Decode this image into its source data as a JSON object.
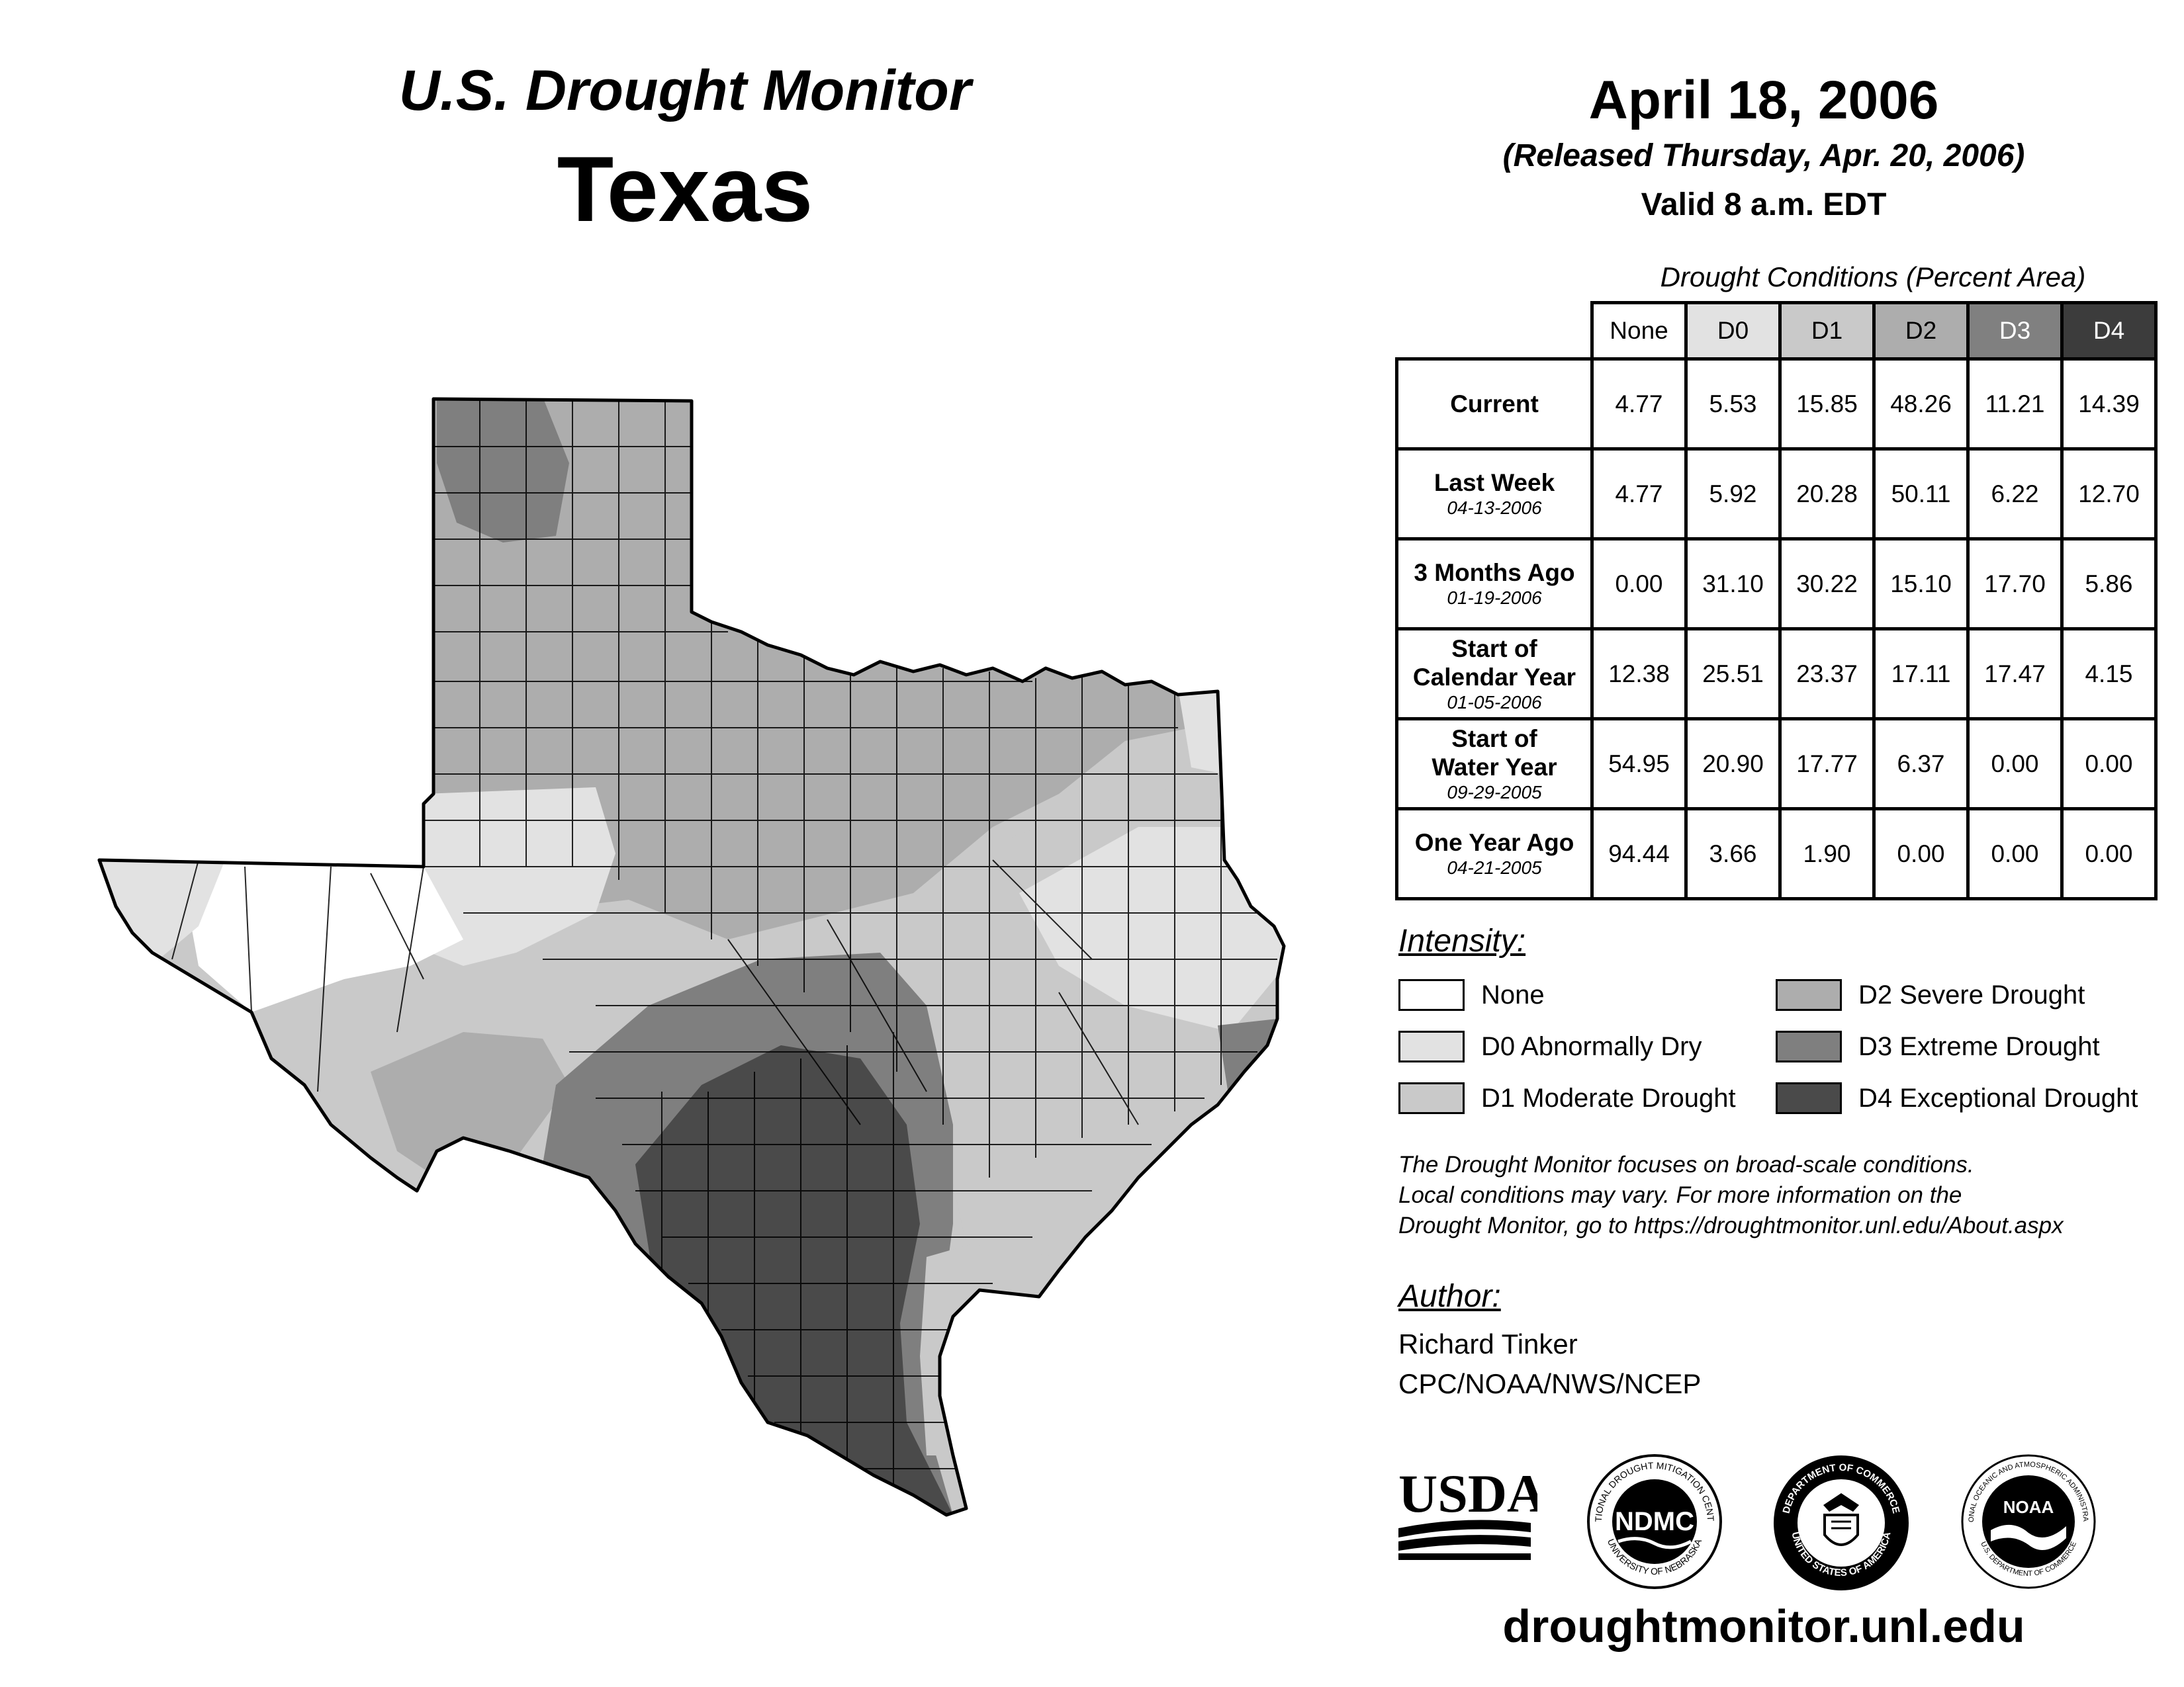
{
  "header": {
    "subtitle": "U.S. Drought Monitor",
    "state": "Texas",
    "date": "April 18, 2006",
    "released": "(Released Thursday, Apr. 20, 2006)",
    "valid": "Valid 8 a.m. EDT"
  },
  "table": {
    "caption": "Drought Conditions (Percent Area)",
    "columns": [
      "None",
      "D0",
      "D1",
      "D2",
      "D3",
      "D4"
    ],
    "rows": [
      {
        "label": "Current",
        "date": "",
        "values": [
          "4.77",
          "5.53",
          "15.85",
          "48.26",
          "11.21",
          "14.39"
        ]
      },
      {
        "label": "Last Week",
        "date": "04-13-2006",
        "values": [
          "4.77",
          "5.92",
          "20.28",
          "50.11",
          "6.22",
          "12.70"
        ]
      },
      {
        "label": "3 Months Ago",
        "date": "01-19-2006",
        "values": [
          "0.00",
          "31.10",
          "30.22",
          "15.10",
          "17.70",
          "5.86"
        ]
      },
      {
        "label_line1": "Start of",
        "label_line2": "Calendar Year",
        "date": "01-05-2006",
        "values": [
          "12.38",
          "25.51",
          "23.37",
          "17.11",
          "17.47",
          "4.15"
        ]
      },
      {
        "label_line1": "Start of",
        "label_line2": "Water Year",
        "date": "09-29-2005",
        "values": [
          "54.95",
          "20.90",
          "17.77",
          "6.37",
          "0.00",
          "0.00"
        ]
      },
      {
        "label": "One Year Ago",
        "date": "04-21-2005",
        "values": [
          "94.44",
          "3.66",
          "1.90",
          "0.00",
          "0.00",
          "0.00"
        ]
      }
    ]
  },
  "legend": {
    "title": "Intensity:",
    "items": [
      {
        "label": "None",
        "color": "#ffffff"
      },
      {
        "label": "D0 Abnormally Dry",
        "color": "#e2e2e2"
      },
      {
        "label": "D1 Moderate Drought",
        "color": "#c9c9c9"
      },
      {
        "label": "D2 Severe Drought",
        "color": "#adadad"
      },
      {
        "label": "D3 Extreme Drought",
        "color": "#7f7f7f"
      },
      {
        "label": "D4 Exceptional Drought",
        "color": "#4a4a4a"
      }
    ]
  },
  "note": {
    "line1": "The Drought Monitor focuses on broad-scale conditions.",
    "line2": "Local conditions may vary. For more information on the",
    "line3": "Drought Monitor, go to https://droughtmonitor.unl.edu/About.aspx"
  },
  "author": {
    "title": "Author:",
    "name": "Richard Tinker",
    "org": "CPC/NOAA/NWS/NCEP"
  },
  "logos": {
    "usda": "USDA",
    "ndmc": "NDMC",
    "ndmc_ring_top": "NATIONAL DROUGHT MITIGATION CENTER",
    "ndmc_ring_bottom": "UNIVERSITY OF NEBRASKA",
    "commerce_ring_top": "DEPARTMENT OF COMMERCE",
    "commerce_ring_bottom": "UNITED STATES OF AMERICA",
    "noaa": "NOAA",
    "noaa_ring_top": "NATIONAL OCEANIC AND ATMOSPHERIC ADMINISTRATION",
    "noaa_ring_bottom": "U.S. DEPARTMENT OF COMMERCE"
  },
  "website": "droughtmonitor.unl.edu",
  "colors": {
    "none": "#ffffff",
    "d0": "#e2e2e2",
    "d1": "#c9c9c9",
    "d2": "#adadad",
    "d3": "#7f7f7f",
    "d4": "#4a4a4a",
    "d3_header": "#808080",
    "d4_header": "#3c3c3c"
  }
}
